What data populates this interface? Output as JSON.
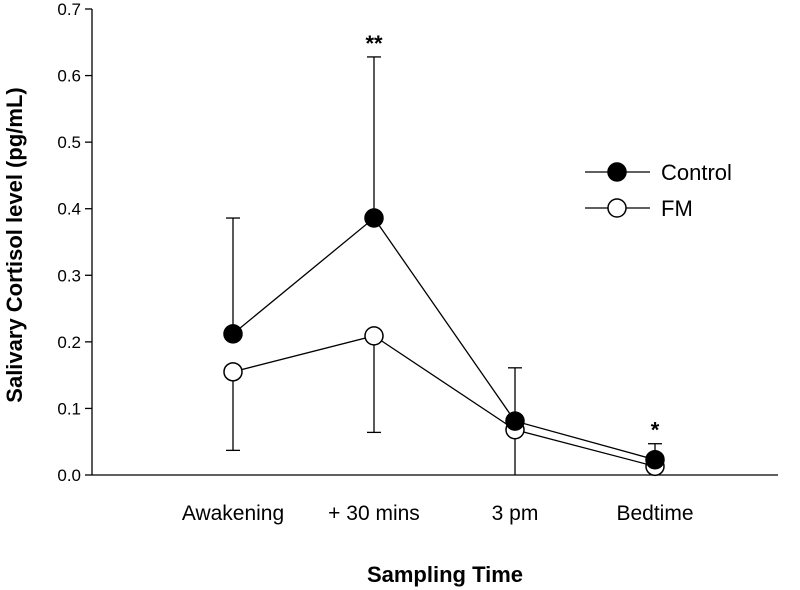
{
  "chart_data": {
    "type": "line",
    "title": "",
    "xlabel": "Sampling Time",
    "ylabel": "Salivary Cortisol level (pg/mL)",
    "categories": [
      "Awakening",
      "+ 30 mins",
      "3 pm",
      "Bedtime"
    ],
    "ylim": [
      0,
      0.7
    ],
    "yticks": [
      "0.0",
      "0.1",
      "0.2",
      "0.3",
      "0.4",
      "0.5",
      "0.6",
      "0.7"
    ],
    "grid": false,
    "legend_position": "right",
    "series": [
      {
        "name": "Control",
        "marker": "filled-circle",
        "color": "#000000",
        "values": [
          0.212,
          0.386,
          0.081,
          0.023
        ],
        "error_upper": [
          0.386,
          0.628,
          0.161,
          0.047
        ]
      },
      {
        "name": "FM",
        "marker": "open-circle",
        "color": "#ffffff",
        "values": [
          0.155,
          0.209,
          0.068,
          0.013
        ],
        "error_lower": [
          0.037,
          0.064,
          0.0,
          0.0
        ]
      }
    ],
    "annotations": [
      {
        "category": "+ 30 mins",
        "text": "**"
      },
      {
        "category": "Bedtime",
        "text": "*"
      }
    ]
  }
}
